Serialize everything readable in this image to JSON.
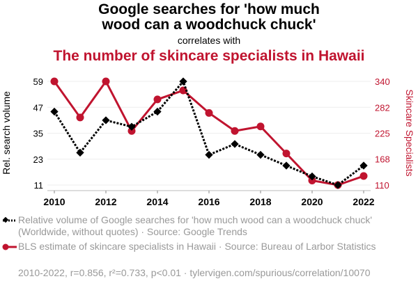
{
  "title_line1": "Google searches for 'how much",
  "title_line2": "wood can a woodchuck chuck'",
  "connector": "correlates with",
  "title2": "The number of skincare specialists in Hawaii",
  "chart_data": {
    "type": "line",
    "categories": [
      2010,
      2011,
      2012,
      2013,
      2014,
      2015,
      2016,
      2017,
      2018,
      2019,
      2020,
      2021,
      2022
    ],
    "x_ticks": [
      "2010",
      "2012",
      "2014",
      "2016",
      "2018",
      "2020",
      "2022"
    ],
    "ylabel": "Rel. search volume",
    "y2label": "Skincare Specialists",
    "ylim": [
      11,
      59
    ],
    "y_ticks": [
      "59",
      "47",
      "35",
      "23",
      "11"
    ],
    "y2lim": [
      110,
      340
    ],
    "y2_ticks": [
      "340",
      "282",
      "225",
      "168",
      "110"
    ],
    "grid": true,
    "series": [
      {
        "name": "Relative volume of Google searches for 'how much wood can a woodchuck chuck' (Worldwide, without quotes) · Source: Google Trends",
        "axis": "left",
        "color": "#000000",
        "style": "dotted",
        "marker": "diamond",
        "values": [
          45,
          26,
          41,
          38,
          45,
          59,
          25,
          30,
          25,
          20,
          15,
          11,
          20
        ]
      },
      {
        "name": "BLS estimate of skincare specialists in Hawaii · Source: Bureau of Larbor Statistics",
        "axis": "right",
        "color": "#c0142f",
        "style": "solid",
        "marker": "circle",
        "values": [
          340,
          260,
          340,
          230,
          300,
          320,
          270,
          230,
          240,
          180,
          120,
          110,
          130
        ]
      }
    ]
  },
  "legend": [
    "Relative volume of Google searches for 'how much wood can a woodchuck chuck' (Worldwide, without quotes) · Source: Google Trends",
    "BLS estimate of skincare specialists in Hawaii · Source: Bureau of Larbor Statistics"
  ],
  "footer": "2010-2022, r=0.856, r²=0.733, p<0.01 · tylervigen.com/spurious/correlation/10070"
}
